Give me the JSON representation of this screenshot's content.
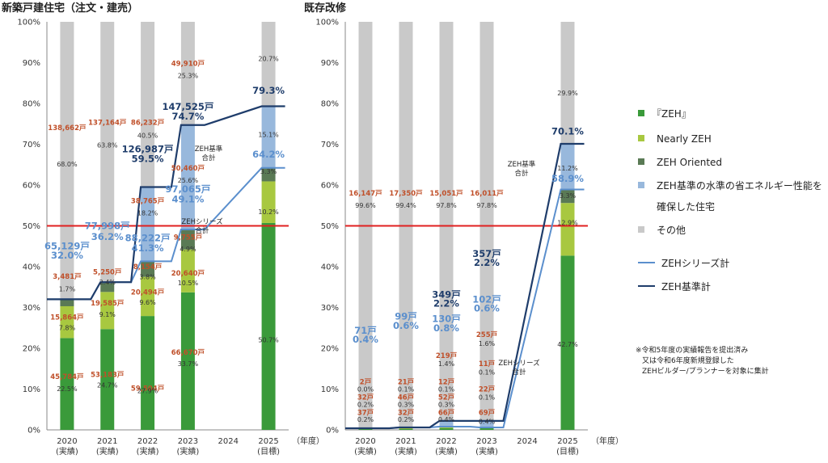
{
  "colors": {
    "zeh": "#3a9a3a",
    "nearly": "#a8c840",
    "oriented": "#5a7a55",
    "standard": "#98b8dc",
    "other": "#c9c9c9",
    "series_line": "#5b8fcd",
    "standard_line": "#1f3d6b",
    "ref_line": "#e02020",
    "count_text": "#c0502a"
  },
  "legend": {
    "items": [
      "『ZEH』",
      "Nearly ZEH",
      "ZEH Oriented",
      "ZEH基準の水準の省エネルギー性能を",
      "確保した住宅",
      "その他"
    ],
    "series_line": "ZEHシリーズ計",
    "standard_line": "ZEH基準計"
  },
  "note": [
    "※令和5年度の実績報告を提出済み",
    "又は令和6年度新規登録した",
    "ZEHビルダー/プランナーを対象に集計"
  ],
  "chart_data": [
    {
      "type": "bar",
      "title": "新築戸建住宅（注文・建売）",
      "y_ticks": [
        "0%",
        "10%",
        "20%",
        "30%",
        "40%",
        "50%",
        "60%",
        "70%",
        "80%",
        "90%",
        "100%"
      ],
      "ylim": [
        0,
        100
      ],
      "year_unit": "（年度）",
      "categories": [
        "2020",
        "2021",
        "2022",
        "2023",
        "2024",
        "2025"
      ],
      "category_sub": [
        "(実績)",
        "(実績)",
        "(実績)",
        "(実績)",
        "",
        "(目標)"
      ],
      "series": [
        {
          "key": "zeh",
          "values": [
            22.5,
            24.7,
            27.9,
            33.7,
            null,
            50.7
          ]
        },
        {
          "key": "nearly",
          "values": [
            7.8,
            9.1,
            9.6,
            10.5,
            null,
            10.2
          ]
        },
        {
          "key": "oriented",
          "values": [
            1.7,
            2.4,
            3.8,
            4.9,
            null,
            3.3
          ]
        },
        {
          "key": "standard",
          "values": [
            0,
            0,
            18.2,
            25.6,
            null,
            15.1
          ]
        },
        {
          "key": "other",
          "values": [
            68.0,
            63.8,
            40.5,
            25.3,
            null,
            20.7
          ]
        }
      ],
      "lines": {
        "series_total": [
          32.0,
          36.2,
          41.3,
          49.1,
          null,
          64.2
        ],
        "standard_total": [
          32.0,
          36.2,
          59.5,
          74.7,
          null,
          79.3
        ]
      },
      "line_label_series": "ZEHシリーズ\n合計",
      "line_label_standard": "ZEH基準\n合計",
      "text_labels": [
        {
          "t": "45,784戸",
          "x": 0,
          "y": 12.5,
          "c": "count_text"
        },
        {
          "t": "22.5%",
          "x": 0,
          "y": 9.5,
          "c": "dark"
        },
        {
          "t": "15,864戸",
          "x": 0,
          "y": 27.0,
          "c": "count_text"
        },
        {
          "t": "7.8%",
          "x": 0,
          "y": 24.5,
          "c": "dark"
        },
        {
          "t": "3,481戸",
          "x": 0,
          "y": 37.0,
          "c": "count_text"
        },
        {
          "t": "1.7%",
          "x": 0,
          "y": 34.0,
          "c": "dark"
        },
        {
          "t": "65,129戸",
          "x": 0,
          "y": 44.3,
          "c": "series_line",
          "big": 1
        },
        {
          "t": "32.0%",
          "x": 0,
          "y": 42.0,
          "c": "series_line",
          "big": 1
        },
        {
          "t": "138,662戸",
          "x": 0,
          "y": 73.5,
          "c": "count_text"
        },
        {
          "t": "68.0%",
          "x": 0,
          "y": 64.6,
          "c": "dark"
        },
        {
          "t": "53,183戸",
          "x": 1,
          "y": 13.0,
          "c": "count_text"
        },
        {
          "t": "24.7%",
          "x": 1,
          "y": 10.4,
          "c": "dark"
        },
        {
          "t": "19,585戸",
          "x": 1,
          "y": 30.5,
          "c": "count_text"
        },
        {
          "t": "9.1%",
          "x": 1,
          "y": 27.7,
          "c": "dark"
        },
        {
          "t": "5,250戸",
          "x": 1,
          "y": 38.1,
          "c": "count_text"
        },
        {
          "t": "2.4%",
          "x": 1,
          "y": 35.6,
          "c": "dark"
        },
        {
          "t": "77,998戸",
          "x": 1,
          "y": 49.2,
          "c": "series_line",
          "big": 1
        },
        {
          "t": "36.2%",
          "x": 1,
          "y": 46.5,
          "c": "series_line",
          "big": 1
        },
        {
          "t": "137,164戸",
          "x": 1,
          "y": 74.8,
          "c": "count_text"
        },
        {
          "t": "63.8%",
          "x": 1,
          "y": 69.2,
          "c": "dark"
        },
        {
          "t": "59,504戸",
          "x": 2,
          "y": 9.6,
          "c": "count_text"
        },
        {
          "t": "27.9%",
          "x": 2,
          "y": 9.0,
          "c": "dark"
        },
        {
          "t": "20,494戸",
          "x": 2,
          "y": 33.2,
          "c": "count_text"
        },
        {
          "t": "9.6%",
          "x": 2,
          "y": 30.7,
          "c": "dark"
        },
        {
          "t": "8,154戸",
          "x": 2,
          "y": 39.4,
          "c": "count_text"
        },
        {
          "t": "3.8%",
          "x": 2,
          "y": 36.9,
          "c": "dark"
        },
        {
          "t": "88,222戸",
          "x": 2,
          "y": 46.2,
          "c": "series_line",
          "big": 1
        },
        {
          "t": "41.3%",
          "x": 2,
          "y": 43.8,
          "c": "series_line",
          "big": 1
        },
        {
          "t": "38,765戸",
          "x": 2,
          "y": 55.5,
          "c": "count_text"
        },
        {
          "t": "18.2%",
          "x": 2,
          "y": 52.6,
          "c": "dark"
        },
        {
          "t": "126,987戸",
          "x": 2,
          "y": 68.0,
          "c": "standard_line",
          "big": 1
        },
        {
          "t": "59.5%",
          "x": 2,
          "y": 65.6,
          "c": "standard_line",
          "big": 1
        },
        {
          "t": "86,232戸",
          "x": 2,
          "y": 74.8,
          "c": "count_text"
        },
        {
          "t": "40.5%",
          "x": 2,
          "y": 71.6,
          "c": "dark"
        },
        {
          "t": "66,670戸",
          "x": 3,
          "y": 18.4,
          "c": "count_text"
        },
        {
          "t": "33.7%",
          "x": 3,
          "y": 15.6,
          "c": "dark"
        },
        {
          "t": "20,640戸",
          "x": 3,
          "y": 37.8,
          "c": "count_text"
        },
        {
          "t": "10.5%",
          "x": 3,
          "y": 35.4,
          "c": "dark"
        },
        {
          "t": "9,755戸",
          "x": 3,
          "y": 46.6,
          "c": "count_text"
        },
        {
          "t": "4.9%",
          "x": 3,
          "y": 43.8,
          "c": "dark"
        },
        {
          "t": "97,065戸",
          "x": 3,
          "y": 58.2,
          "c": "series_line",
          "big": 1
        },
        {
          "t": "49.1%",
          "x": 3,
          "y": 55.7,
          "c": "series_line",
          "big": 1
        },
        {
          "t": "50,460戸",
          "x": 3,
          "y": 63.6,
          "c": "count_text"
        },
        {
          "t": "25.6%",
          "x": 3,
          "y": 60.6,
          "c": "dark"
        },
        {
          "t": "147,525戸",
          "x": 3,
          "y": 78.4,
          "c": "standard_line",
          "big": 1
        },
        {
          "t": "74.7%",
          "x": 3,
          "y": 76.0,
          "c": "standard_line",
          "big": 1
        },
        {
          "t": "49,910戸",
          "x": 3,
          "y": 89.2,
          "c": "count_text"
        },
        {
          "t": "25.3%",
          "x": 3,
          "y": 86.2,
          "c": "dark"
        },
        {
          "t": "50.7%",
          "x": 5,
          "y": 21.5,
          "c": "dark"
        },
        {
          "t": "10.2%",
          "x": 5,
          "y": 52.9,
          "c": "dark"
        },
        {
          "t": "3.3%",
          "x": 5,
          "y": 62.8,
          "c": "dark"
        },
        {
          "t": "64.2%",
          "x": 5,
          "y": 66.7,
          "c": "series_line",
          "big": 1
        },
        {
          "t": "15.1%",
          "x": 5,
          "y": 71.8,
          "c": "dark"
        },
        {
          "t": "79.3%",
          "x": 5,
          "y": 82.4,
          "c": "standard_line",
          "big": 1
        },
        {
          "t": "20.7%",
          "x": 5,
          "y": 90.4,
          "c": "dark"
        }
      ]
    },
    {
      "type": "bar",
      "title": "既存改修",
      "y_ticks": [
        "0%",
        "10%",
        "20%",
        "30%",
        "40%",
        "50%",
        "60%",
        "70%",
        "80%",
        "90%",
        "100%"
      ],
      "ylim": [
        0,
        100
      ],
      "year_unit": "（年度）",
      "categories": [
        "2020",
        "2021",
        "2022",
        "2023",
        "2024",
        "2025"
      ],
      "category_sub": [
        "(実績)",
        "(実績)",
        "(実績)",
        "(実績)",
        "",
        "(目標)"
      ],
      "series": [
        {
          "key": "zeh",
          "values": [
            0.2,
            0.2,
            0.4,
            0.4,
            null,
            42.7
          ]
        },
        {
          "key": "nearly",
          "values": [
            0.2,
            0.3,
            0.3,
            0.1,
            null,
            12.9
          ]
        },
        {
          "key": "oriented",
          "values": [
            0.0,
            0.1,
            0.1,
            0.1,
            null,
            3.3
          ]
        },
        {
          "key": "standard",
          "values": [
            0,
            0,
            1.4,
            1.6,
            null,
            11.2
          ]
        },
        {
          "key": "other",
          "values": [
            99.6,
            99.4,
            97.8,
            97.8,
            null,
            29.9
          ]
        }
      ],
      "lines": {
        "series_total": [
          0.4,
          0.6,
          0.8,
          0.6,
          null,
          58.9
        ],
        "standard_total": [
          0.4,
          0.6,
          2.2,
          2.2,
          null,
          70.1
        ]
      },
      "line_label_series": "ZEHシリーズ\n合計",
      "line_label_standard": "ZEH基準\n合計",
      "text_labels": [
        {
          "t": "37戸",
          "x": 0,
          "y": 3.7,
          "c": "count_text"
        },
        {
          "t": "0.2%",
          "x": 0,
          "y": 2.0,
          "c": "dark"
        },
        {
          "t": "32戸",
          "x": 0,
          "y": 7.4,
          "c": "count_text"
        },
        {
          "t": "0.2%",
          "x": 0,
          "y": 5.6,
          "c": "dark"
        },
        {
          "t": "2戸",
          "x": 0,
          "y": 11.2,
          "c": "count_text"
        },
        {
          "t": "0.0%",
          "x": 0,
          "y": 9.4,
          "c": "dark"
        },
        {
          "t": "71戸",
          "x": 0,
          "y": 23.6,
          "c": "series_line",
          "big": 1
        },
        {
          "t": "0.4%",
          "x": 0,
          "y": 21.4,
          "c": "series_line",
          "big": 1
        },
        {
          "t": "16,147戸",
          "x": 0,
          "y": 57.4,
          "c": "count_text"
        },
        {
          "t": "99.6%",
          "x": 0,
          "y": 54.5,
          "c": "dark"
        },
        {
          "t": "32戸",
          "x": 1,
          "y": 3.7,
          "c": "count_text"
        },
        {
          "t": "0.2%",
          "x": 1,
          "y": 2.0,
          "c": "dark"
        },
        {
          "t": "46戸",
          "x": 1,
          "y": 7.4,
          "c": "count_text"
        },
        {
          "t": "0.3%",
          "x": 1,
          "y": 5.6,
          "c": "dark"
        },
        {
          "t": "21戸",
          "x": 1,
          "y": 11.2,
          "c": "count_text"
        },
        {
          "t": "0.1%",
          "x": 1,
          "y": 9.4,
          "c": "dark"
        },
        {
          "t": "99戸",
          "x": 1,
          "y": 27.0,
          "c": "series_line",
          "big": 1
        },
        {
          "t": "0.6%",
          "x": 1,
          "y": 24.8,
          "c": "series_line",
          "big": 1
        },
        {
          "t": "17,350戸",
          "x": 1,
          "y": 57.4,
          "c": "count_text"
        },
        {
          "t": "99.4%",
          "x": 1,
          "y": 54.5,
          "c": "dark"
        },
        {
          "t": "66戸",
          "x": 2,
          "y": 3.7,
          "c": "count_text"
        },
        {
          "t": "0.4%",
          "x": 2,
          "y": 2.0,
          "c": "dark"
        },
        {
          "t": "52戸",
          "x": 2,
          "y": 7.4,
          "c": "count_text"
        },
        {
          "t": "0.3%",
          "x": 2,
          "y": 5.6,
          "c": "dark"
        },
        {
          "t": "12戸",
          "x": 2,
          "y": 11.2,
          "c": "count_text"
        },
        {
          "t": "0.1%",
          "x": 2,
          "y": 9.4,
          "c": "dark"
        },
        {
          "t": "219戸",
          "x": 2,
          "y": 17.6,
          "c": "count_text"
        },
        {
          "t": "1.4%",
          "x": 2,
          "y": 15.6,
          "c": "dark"
        },
        {
          "t": "130戸",
          "x": 2,
          "y": 26.4,
          "c": "series_line",
          "big": 1
        },
        {
          "t": "0.8%",
          "x": 2,
          "y": 24.2,
          "c": "series_line",
          "big": 1
        },
        {
          "t": "349戸",
          "x": 2,
          "y": 32.4,
          "c": "standard_line",
          "big": 1
        },
        {
          "t": "2.2%",
          "x": 2,
          "y": 30.2,
          "c": "standard_line",
          "big": 1
        },
        {
          "t": "15,051戸",
          "x": 2,
          "y": 57.4,
          "c": "count_text"
        },
        {
          "t": "97.8%",
          "x": 2,
          "y": 54.5,
          "c": "dark"
        },
        {
          "t": "69戸",
          "x": 3,
          "y": 3.7,
          "c": "count_text"
        },
        {
          "t": "0.4%",
          "x": 3,
          "y": 1.5,
          "c": "dark"
        },
        {
          "t": "22戸",
          "x": 3,
          "y": 9.4,
          "c": "count_text"
        },
        {
          "t": "0.1%",
          "x": 3,
          "y": 7.4,
          "c": "dark"
        },
        {
          "t": "11戸",
          "x": 3,
          "y": 15.6,
          "c": "count_text"
        },
        {
          "t": "0.1%",
          "x": 3,
          "y": 13.6,
          "c": "dark"
        },
        {
          "t": "255戸",
          "x": 3,
          "y": 22.8,
          "c": "count_text"
        },
        {
          "t": "1.6%",
          "x": 3,
          "y": 20.6,
          "c": "dark"
        },
        {
          "t": "102戸",
          "x": 3,
          "y": 31.2,
          "c": "series_line",
          "big": 1
        },
        {
          "t": "0.6%",
          "x": 3,
          "y": 29.0,
          "c": "series_line",
          "big": 1
        },
        {
          "t": "357戸",
          "x": 3,
          "y": 42.4,
          "c": "standard_line",
          "big": 1
        },
        {
          "t": "2.2%",
          "x": 3,
          "y": 40.2,
          "c": "standard_line",
          "big": 1
        },
        {
          "t": "16,011戸",
          "x": 3,
          "y": 57.4,
          "c": "count_text"
        },
        {
          "t": "97.8%",
          "x": 3,
          "y": 54.5,
          "c": "dark"
        },
        {
          "t": "42.7%",
          "x": 5,
          "y": 20.4,
          "c": "dark"
        },
        {
          "t": "12.9%",
          "x": 5,
          "y": 50.2,
          "c": "dark"
        },
        {
          "t": "3.3%",
          "x": 5,
          "y": 56.8,
          "c": "dark"
        },
        {
          "t": "58.9%",
          "x": 5,
          "y": 60.8,
          "c": "series_line",
          "big": 1
        },
        {
          "t": "11.2%",
          "x": 5,
          "y": 63.6,
          "c": "dark"
        },
        {
          "t": "70.1%",
          "x": 5,
          "y": 72.4,
          "c": "standard_line",
          "big": 1
        },
        {
          "t": "29.9%",
          "x": 5,
          "y": 82.0,
          "c": "dark"
        }
      ]
    }
  ]
}
